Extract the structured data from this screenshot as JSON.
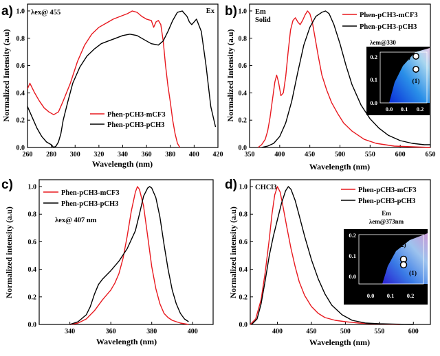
{
  "colors": {
    "red": "#e8191f",
    "black": "#000000",
    "inset_bg": "#000000",
    "inset_axis": "#ffffff"
  },
  "chart_data": [
    {
      "panel": "a)",
      "type": "line",
      "xlabel": "Wavelength (nm)",
      "ylabel": "Normalized Intensity (a.u)",
      "xlim": [
        260,
        420
      ],
      "ylim": [
        0,
        1.05
      ],
      "xticks": [
        260,
        280,
        300,
        320,
        340,
        360,
        380,
        400,
        420
      ],
      "yticks": [
        "0.0",
        "0.2",
        "0.4",
        "0.6",
        "0.8",
        "1.0"
      ],
      "annotations": [
        {
          "text": "λex@ 455",
          "where": "top-left"
        },
        {
          "text": "Ex",
          "where": "top-right"
        }
      ],
      "legend": {
        "where": "center-left"
      },
      "series": [
        {
          "name": "Phen-pCH3-mCF3",
          "color": "red",
          "x": [
            260,
            262,
            266,
            270,
            274,
            278,
            282,
            286,
            290,
            296,
            302,
            308,
            314,
            320,
            326,
            332,
            338,
            344,
            348,
            352,
            356,
            360,
            364,
            366,
            368,
            370,
            372,
            374,
            376,
            378,
            380,
            382,
            384,
            386,
            388
          ],
          "y": [
            0.43,
            0.47,
            0.4,
            0.34,
            0.29,
            0.26,
            0.24,
            0.26,
            0.34,
            0.47,
            0.63,
            0.75,
            0.83,
            0.88,
            0.91,
            0.94,
            0.96,
            0.98,
            1.0,
            0.99,
            0.96,
            0.94,
            0.93,
            0.88,
            0.92,
            0.93,
            0.9,
            0.78,
            0.6,
            0.45,
            0.33,
            0.2,
            0.1,
            0.03,
            0.0
          ]
        },
        {
          "name": "Phen-pCH3-pCH3",
          "color": "black",
          "x": [
            260,
            264,
            268,
            272,
            276,
            280,
            282,
            284,
            286,
            288,
            290,
            294,
            298,
            304,
            310,
            316,
            322,
            328,
            334,
            340,
            346,
            352,
            358,
            364,
            370,
            374,
            378,
            382,
            386,
            390,
            394,
            396,
            398,
            402,
            406,
            410,
            414,
            418
          ],
          "y": [
            0.3,
            0.22,
            0.14,
            0.08,
            0.04,
            0.02,
            0.0,
            0.01,
            0.04,
            0.1,
            0.2,
            0.34,
            0.47,
            0.59,
            0.67,
            0.72,
            0.76,
            0.78,
            0.8,
            0.82,
            0.83,
            0.82,
            0.79,
            0.76,
            0.75,
            0.78,
            0.85,
            0.93,
            0.99,
            1.0,
            0.96,
            0.92,
            0.9,
            0.94,
            0.85,
            0.6,
            0.3,
            0.15
          ]
        }
      ]
    },
    {
      "panel": "b)",
      "type": "line",
      "xlabel": "Wavelength (nm)",
      "ylabel": "Normalized Intensity (a.u)",
      "xlim": [
        350,
        650
      ],
      "ylim": [
        0,
        1.05
      ],
      "xticks": [
        350,
        400,
        450,
        500,
        550,
        600,
        650
      ],
      "yticks": [
        "0.0",
        "0.2",
        "0.4",
        "0.6",
        "0.8",
        "1.0"
      ],
      "annotations": [
        {
          "text": "Em",
          "where": "top-left"
        },
        {
          "text": "Solid",
          "where": "top-left"
        }
      ],
      "legend": {
        "where": "top-right"
      },
      "series": [
        {
          "name": "Phen-pCH3-mCF3",
          "color": "red",
          "x": [
            364,
            370,
            376,
            380,
            384,
            388,
            392,
            395,
            398,
            402,
            406,
            410,
            414,
            418,
            422,
            426,
            430,
            434,
            438,
            442,
            446,
            450,
            454,
            458,
            464,
            470,
            478,
            486,
            496,
            506,
            520,
            540,
            560,
            590,
            620,
            650
          ],
          "y": [
            0.0,
            0.02,
            0.06,
            0.12,
            0.22,
            0.35,
            0.48,
            0.53,
            0.48,
            0.38,
            0.4,
            0.52,
            0.7,
            0.86,
            0.93,
            0.95,
            0.92,
            0.9,
            0.93,
            0.97,
            1.0,
            0.98,
            0.92,
            0.82,
            0.67,
            0.53,
            0.42,
            0.33,
            0.25,
            0.18,
            0.12,
            0.06,
            0.03,
            0.01,
            0.005,
            0.0
          ]
        },
        {
          "name": "Phen-pCH3-pCH3",
          "color": "black",
          "x": [
            370,
            380,
            390,
            400,
            410,
            420,
            430,
            440,
            450,
            460,
            470,
            476,
            482,
            490,
            500,
            510,
            520,
            535,
            550,
            565,
            580,
            600,
            620,
            640,
            650
          ],
          "y": [
            0.0,
            0.01,
            0.03,
            0.08,
            0.18,
            0.34,
            0.55,
            0.75,
            0.88,
            0.96,
            0.99,
            1.0,
            0.98,
            0.9,
            0.76,
            0.6,
            0.46,
            0.31,
            0.21,
            0.14,
            0.09,
            0.05,
            0.03,
            0.02,
            0.02
          ]
        }
      ],
      "inset": {
        "title": "λem@330",
        "xticks": [
          "0.0",
          "0.1",
          "0.2"
        ],
        "yticks": [
          "0.0",
          "0.1",
          "0.2"
        ],
        "points": [
          {
            "label": "(2)",
            "x": 0.18,
            "y": 0.22
          },
          {
            "label": "(1)",
            "x": 0.18,
            "y": 0.14
          }
        ]
      }
    },
    {
      "panel": "c)",
      "type": "line",
      "xlabel": "Wavelength (nm)",
      "ylabel": "Normalized intensity (a.u)",
      "xlim": [
        325,
        410
      ],
      "ylim": [
        0,
        1.05
      ],
      "xticks": [
        340,
        360,
        380,
        400
      ],
      "yticks": [
        "0.0",
        "0.2",
        "0.4",
        "0.6",
        "0.8",
        "1.0"
      ],
      "annotations": [
        {
          "text": "λex@ 407 nm",
          "where": "top-left"
        }
      ],
      "legend": {
        "where": "top-left"
      },
      "series": [
        {
          "name": "Phen-pCH3-mCF3",
          "color": "red",
          "x": [
            340,
            344,
            348,
            352,
            356,
            360,
            362,
            364,
            366,
            368,
            370,
            372,
            373,
            374,
            376,
            378,
            380,
            382,
            384,
            386,
            388,
            390,
            394,
            398
          ],
          "y": [
            0.0,
            0.01,
            0.04,
            0.1,
            0.18,
            0.25,
            0.3,
            0.37,
            0.48,
            0.64,
            0.82,
            0.96,
            1.0,
            0.98,
            0.86,
            0.64,
            0.42,
            0.26,
            0.15,
            0.08,
            0.05,
            0.03,
            0.01,
            0.0
          ]
        },
        {
          "name": "Phen-pCH3-pCH3",
          "color": "black",
          "x": [
            340,
            344,
            348,
            350,
            352,
            354,
            356,
            358,
            360,
            364,
            368,
            372,
            374,
            376,
            378,
            379,
            380,
            382,
            384,
            386,
            388,
            390,
            392,
            394,
            396,
            398
          ],
          "y": [
            0.0,
            0.02,
            0.07,
            0.13,
            0.22,
            0.29,
            0.33,
            0.36,
            0.39,
            0.46,
            0.55,
            0.68,
            0.8,
            0.93,
            0.99,
            1.0,
            0.99,
            0.92,
            0.78,
            0.58,
            0.4,
            0.25,
            0.15,
            0.08,
            0.04,
            0.02
          ]
        }
      ]
    },
    {
      "panel": "d)",
      "type": "line",
      "xlabel": "Wavelength (nm)",
      "ylabel": "Normalized intensity (a.u)",
      "xlim": [
        360,
        625
      ],
      "ylim": [
        0,
        1.05
      ],
      "xticks": [
        400,
        450,
        500,
        550,
        600
      ],
      "yticks": [
        "0.0",
        "0.2",
        "0.4",
        "0.6",
        "0.8",
        "1.0"
      ],
      "annotations": [
        {
          "text": "CHCl3",
          "where": "top-left"
        }
      ],
      "legend": {
        "where": "top-right"
      },
      "series": [
        {
          "name": "Phen-pCH3-mCF3",
          "color": "red",
          "x": [
            360,
            368,
            376,
            382,
            388,
            392,
            396,
            400,
            404,
            408,
            414,
            420,
            426,
            432,
            440,
            450,
            460,
            470,
            485,
            500,
            520,
            540,
            560,
            580
          ],
          "y": [
            0.0,
            0.04,
            0.18,
            0.38,
            0.62,
            0.8,
            0.94,
            1.0,
            0.96,
            0.86,
            0.7,
            0.55,
            0.42,
            0.31,
            0.21,
            0.13,
            0.08,
            0.05,
            0.03,
            0.02,
            0.01,
            0.005,
            0.002,
            0.0
          ]
        },
        {
          "name": "Phen-pCH3-pCH3",
          "color": "black",
          "x": [
            362,
            370,
            376,
            382,
            388,
            394,
            400,
            406,
            412,
            416,
            420,
            426,
            432,
            440,
            450,
            460,
            470,
            480,
            495,
            510,
            530,
            550,
            575,
            600
          ],
          "y": [
            0.0,
            0.04,
            0.15,
            0.32,
            0.5,
            0.64,
            0.76,
            0.88,
            0.97,
            1.0,
            0.98,
            0.9,
            0.79,
            0.64,
            0.47,
            0.33,
            0.22,
            0.14,
            0.07,
            0.03,
            0.01,
            0.005,
            0.002,
            0.0
          ]
        }
      ],
      "inset": {
        "title_line1": "Em",
        "title_line2": "λem@373nm",
        "xticks": [
          "0.0",
          "0.1",
          "0.2"
        ],
        "yticks": [
          "0.0",
          "0.1",
          "0.2"
        ],
        "points": [
          {
            "label": "(2)",
            "x": 0.16,
            "y": 0.07
          },
          {
            "label": "(1)",
            "x": 0.16,
            "y": 0.05
          }
        ]
      }
    }
  ]
}
